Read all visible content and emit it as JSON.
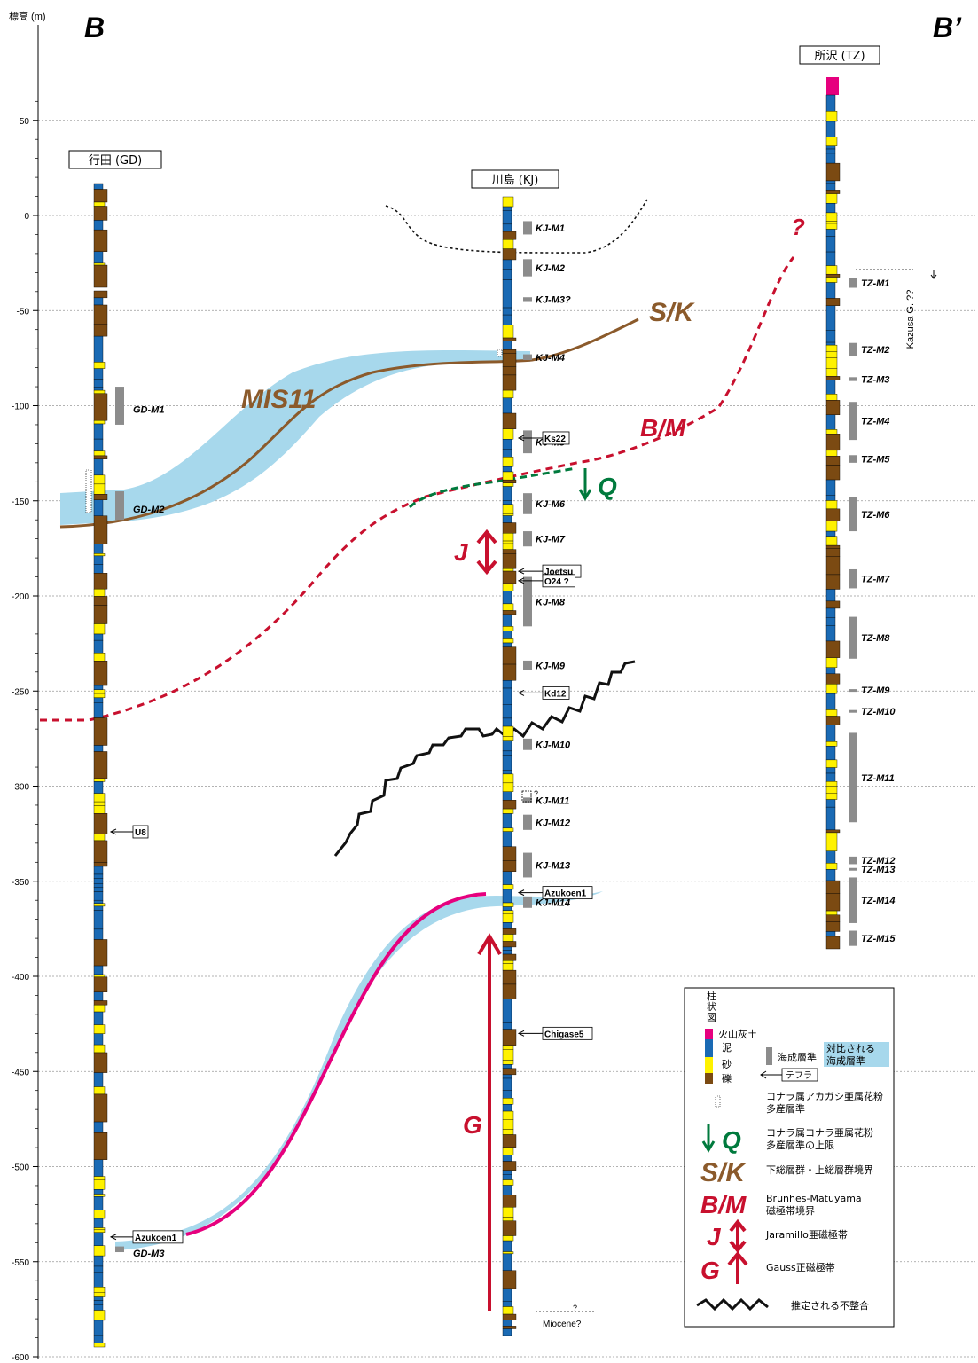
{
  "axis": {
    "label": "標高 (m)",
    "ticks": [
      50,
      0,
      -50,
      -100,
      -150,
      -200,
      -250,
      -300,
      -350,
      -400,
      -450,
      -500,
      -550,
      -600
    ],
    "tick_labels": [
      "50",
      "0",
      "-50",
      "-100",
      "-150",
      "-200",
      "-250",
      "-300",
      "-350",
      "-400",
      "-450",
      "-500",
      "-550",
      "-600"
    ]
  },
  "section": {
    "left": "B",
    "right": "B’"
  },
  "wells": [
    {
      "id": "GD",
      "name": "行田 (GD)",
      "marine": [
        {
          "label": "GD-M1",
          "top": -90,
          "bottom": -110
        },
        {
          "label": "GD-M2",
          "top": -145,
          "bottom": -160
        },
        {
          "label": "GD-M3",
          "top": -542,
          "bottom": -545
        }
      ],
      "tephra": [
        {
          "label": "U8",
          "elev": -324
        },
        {
          "label": "Azukoen1",
          "elev": -537
        }
      ]
    },
    {
      "id": "KJ",
      "name": "川島 (KJ)",
      "marine": [
        {
          "label": "KJ-M1",
          "top": -3,
          "bottom": -10
        },
        {
          "label": "KJ-M2",
          "top": -23,
          "bottom": -32
        },
        {
          "label": "KJ-M3?",
          "top": -43,
          "bottom": -45
        },
        {
          "label": "KJ-M4",
          "top": -73,
          "bottom": -76
        },
        {
          "label": "KJ-M5",
          "top": -113,
          "bottom": -125
        },
        {
          "label": "KJ-M6",
          "top": -146,
          "bottom": -157
        },
        {
          "label": "KJ-M7",
          "top": -166,
          "bottom": -174
        },
        {
          "label": "KJ-M8",
          "top": -190,
          "bottom": -216
        },
        {
          "label": "KJ-M9",
          "top": -234,
          "bottom": -239
        },
        {
          "label": "KJ-M10",
          "top": -275,
          "bottom": -281
        },
        {
          "label": "KJ-M11",
          "top": -306,
          "bottom": -309
        },
        {
          "label": "KJ-M12",
          "top": -315,
          "bottom": -323
        },
        {
          "label": "KJ-M13",
          "top": -335,
          "bottom": -348
        },
        {
          "label": "KJ-M14",
          "top": -358,
          "bottom": -364
        }
      ],
      "tephra": [
        {
          "label": "Ks22",
          "elev": -117
        },
        {
          "label": "Joetsu",
          "elev": -187
        },
        {
          "label": "O24 ?",
          "elev": -192
        },
        {
          "label": "Kd12",
          "elev": -251
        },
        {
          "label": "Azukoen1",
          "elev": -356
        },
        {
          "label": "Chigase5",
          "elev": -430
        }
      ]
    },
    {
      "id": "TZ",
      "name": "所沢 (TZ)",
      "marine": [
        {
          "label": "TZ-M1",
          "top": -33,
          "bottom": -38
        },
        {
          "label": "TZ-M2",
          "top": -67,
          "bottom": -74
        },
        {
          "label": "TZ-M3",
          "top": -85,
          "bottom": -87
        },
        {
          "label": "TZ-M4",
          "top": -98,
          "bottom": -118
        },
        {
          "label": "TZ-M5",
          "top": -126,
          "bottom": -130
        },
        {
          "label": "TZ-M6",
          "top": -148,
          "bottom": -166
        },
        {
          "label": "TZ-M7",
          "top": -186,
          "bottom": -196
        },
        {
          "label": "TZ-M8",
          "top": -211,
          "bottom": -233
        },
        {
          "label": "TZ-M9",
          "top": -249,
          "bottom": -250
        },
        {
          "label": "TZ-M10",
          "top": -260,
          "bottom": -261
        },
        {
          "label": "TZ-M11",
          "top": -272,
          "bottom": -319
        },
        {
          "label": "TZ-M12",
          "top": -337,
          "bottom": -341
        },
        {
          "label": "TZ-M13",
          "top": -343,
          "bottom": -344
        },
        {
          "label": "TZ-M14",
          "top": -348,
          "bottom": -372
        },
        {
          "label": "TZ-M15",
          "top": -376,
          "bottom": -384
        }
      ],
      "tephra": []
    }
  ],
  "boundaries": {
    "mis11": "MIS11",
    "sk": "S/K",
    "bm": "B/M",
    "bm_q": "?",
    "q": "Q",
    "j": "J",
    "g": "G"
  },
  "notes": {
    "kazusa": "Kazusa G. ??",
    "kj_m11_q": "?",
    "miocene": "Miocene?",
    "miocene_q": "?"
  },
  "legend": {
    "column_title": "柱状図",
    "lithology": [
      "火山灰土",
      "泥",
      "砂",
      "礫"
    ],
    "marine": "海成層準",
    "correlated": "対比される海成層準",
    "tephra": "テフラ",
    "pollen1": "コナラ属アカガシ亜属花粉多産層準",
    "q_desc": "コナラ属コナラ亜属花粉多産層準の上限",
    "sk_desc": "下総層群・上総層群境界",
    "bm_desc": "Brunhes-Matuyama磁極帯境界",
    "j_desc": "Jaramillo亜磁極帯",
    "g_desc": "Gauss正磁極帯",
    "unconformity": "推定される不整合"
  },
  "colors": {
    "tephra_soil": "#e6007e",
    "mud": "#1a6ab4",
    "sand": "#fff200",
    "gravel": "#7b4a12",
    "marine": "#8c8c8c",
    "correlation": "#a7d8ec",
    "sk": "#8b5a2b",
    "bm": "#c8102e",
    "q": "#007a3d",
    "g_band": "#e6007e",
    "unconformity": "#111111"
  }
}
